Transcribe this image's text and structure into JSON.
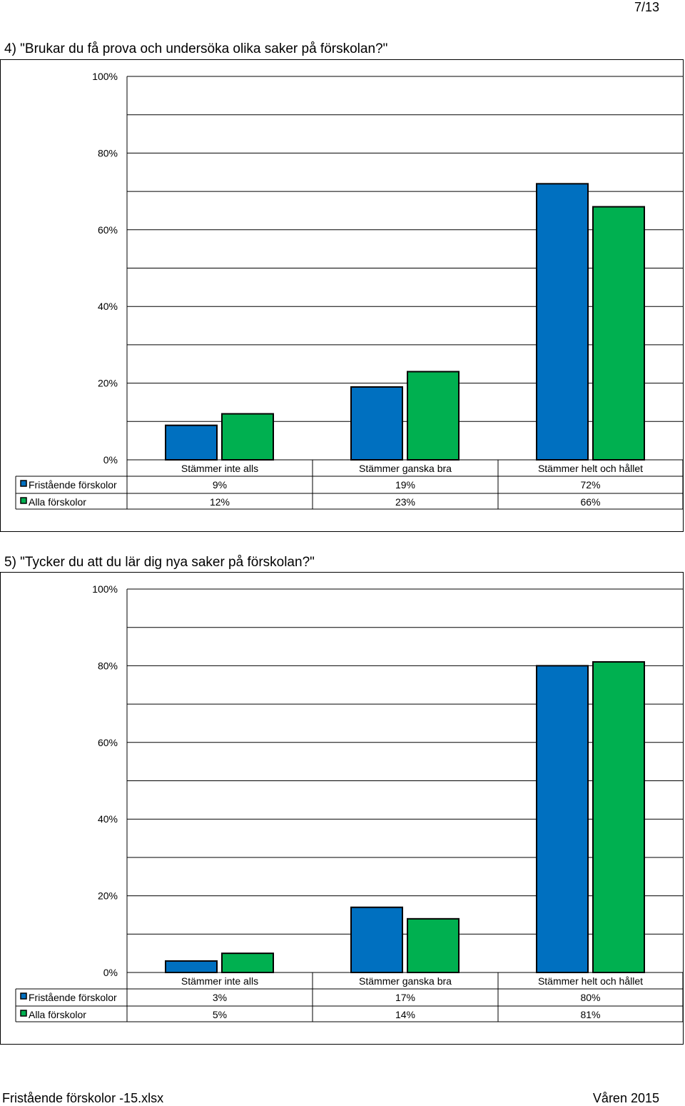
{
  "page_number": "7/13",
  "footer": {
    "left": "Fristående förskolor -15.xlsx",
    "right": "Våren 2015"
  },
  "colors": {
    "series1": "#0070C0",
    "series2": "#00B050"
  },
  "chart_data": [
    {
      "type": "bar",
      "title": "4) \"Brukar du få prova och undersöka olika saker på förskolan?\"",
      "categories": [
        "Stämmer inte alls",
        "Stämmer ganska bra",
        "Stämmer helt och hållet"
      ],
      "series": [
        {
          "name": "Fristående förskolor",
          "values": [
            9,
            19,
            72
          ],
          "labels": [
            "9%",
            "19%",
            "72%"
          ]
        },
        {
          "name": "Alla förskolor",
          "values": [
            12,
            23,
            66
          ],
          "labels": [
            "12%",
            "23%",
            "66%"
          ]
        }
      ],
      "y_ticks": [
        "0%",
        "20%",
        "40%",
        "60%",
        "80%",
        "100%"
      ],
      "ylim": [
        0,
        100
      ],
      "grid": true,
      "legend": "data-table"
    },
    {
      "type": "bar",
      "title": "5) \"Tycker du att du lär dig nya saker på förskolan?\"",
      "categories": [
        "Stämmer inte alls",
        "Stämmer ganska bra",
        "Stämmer helt och hållet"
      ],
      "series": [
        {
          "name": "Fristående förskolor",
          "values": [
            3,
            17,
            80
          ],
          "labels": [
            "3%",
            "17%",
            "80%"
          ]
        },
        {
          "name": "Alla förskolor",
          "values": [
            5,
            14,
            81
          ],
          "labels": [
            "5%",
            "14%",
            "81%"
          ]
        }
      ],
      "y_ticks": [
        "0%",
        "20%",
        "40%",
        "60%",
        "80%",
        "100%"
      ],
      "ylim": [
        0,
        100
      ],
      "grid": true,
      "legend": "data-table"
    }
  ]
}
